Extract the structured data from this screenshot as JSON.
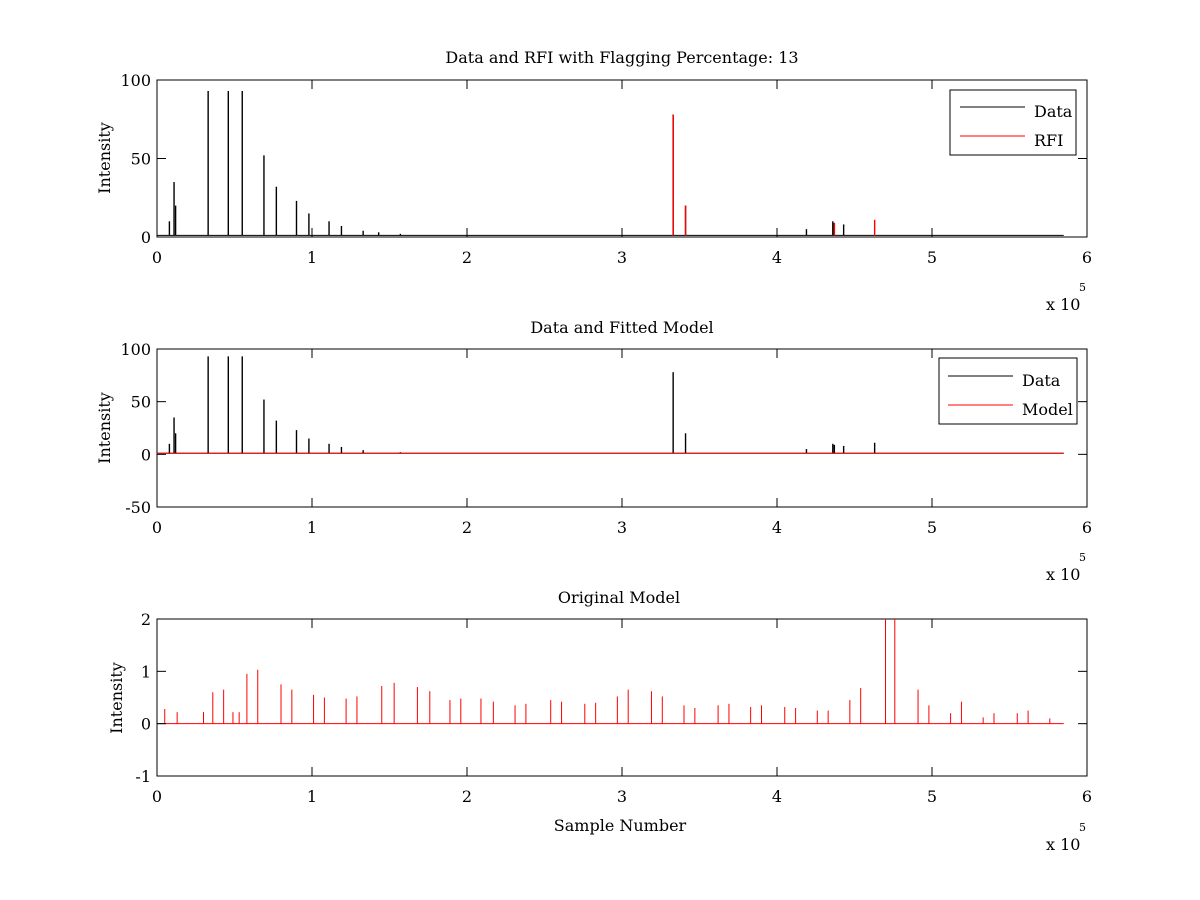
{
  "chart_data": [
    {
      "type": "line",
      "title": "Data and RFI with Flagging Percentage: 13",
      "xlabel": "",
      "ylabel": "Intensity",
      "xlim": [
        0,
        600000
      ],
      "ylim": [
        0,
        100
      ],
      "xticks": [
        0,
        1,
        2,
        3,
        4,
        5,
        6
      ],
      "yticks": [
        0,
        50,
        100
      ],
      "x_multiplier": {
        "base": "x 10",
        "exponent": "5"
      },
      "legend": {
        "position": "top-right",
        "entries": [
          "Data",
          "RFI"
        ]
      },
      "baseline": 1,
      "series": [
        {
          "name": "Data",
          "color": "#000000",
          "x": [
            8000,
            11000,
            12000,
            33000,
            46000,
            55000,
            69000,
            77000,
            90000,
            98000,
            111000,
            119000,
            133000,
            143000,
            157000,
            333000,
            341000,
            419000,
            436000,
            437000,
            443000
          ],
          "values": [
            10,
            35,
            20,
            93,
            93,
            93,
            52,
            32,
            23,
            15,
            10,
            7,
            4,
            3,
            2,
            78,
            20,
            5,
            10,
            9,
            8
          ]
        },
        {
          "name": "RFI",
          "color": "#ff0000",
          "x": [
            333000,
            341000,
            437000,
            463000
          ],
          "values": [
            78,
            20,
            9,
            11
          ]
        }
      ]
    },
    {
      "type": "line",
      "title": "Data and Fitted Model",
      "xlabel": "",
      "ylabel": "Intensity",
      "xlim": [
        0,
        600000
      ],
      "ylim": [
        -50,
        100
      ],
      "xticks": [
        0,
        1,
        2,
        3,
        4,
        5,
        6
      ],
      "yticks": [
        -50,
        0,
        50,
        100
      ],
      "x_multiplier": {
        "base": "x 10",
        "exponent": "5"
      },
      "legend": {
        "position": "top-right",
        "entries": [
          "Data",
          "Model"
        ]
      },
      "baseline": 1,
      "series": [
        {
          "name": "Data",
          "color": "#000000",
          "x": [
            8000,
            11000,
            12000,
            33000,
            46000,
            55000,
            69000,
            77000,
            90000,
            98000,
            111000,
            119000,
            133000,
            157000,
            333000,
            341000,
            419000,
            436000,
            437000,
            443000,
            463000
          ],
          "values": [
            10,
            35,
            20,
            93,
            93,
            93,
            52,
            32,
            23,
            15,
            10,
            7,
            4,
            2,
            78,
            20,
            5,
            10,
            9,
            8,
            11
          ]
        },
        {
          "name": "Model",
          "color": "#ff0000",
          "x": [
            0,
            585000
          ],
          "values": [
            1,
            1
          ]
        }
      ]
    },
    {
      "type": "line",
      "title": "Original Model",
      "xlabel": "Sample Number",
      "ylabel": "Intensity",
      "xlim": [
        0,
        600000
      ],
      "ylim": [
        -1,
        2
      ],
      "xticks": [
        0,
        1,
        2,
        3,
        4,
        5,
        6
      ],
      "yticks": [
        -1,
        0,
        1,
        2
      ],
      "x_multiplier": {
        "base": "x 10",
        "exponent": "5"
      },
      "baseline": 0,
      "series": [
        {
          "name": "Model",
          "color": "#ff0000",
          "x": [
            5000,
            13000,
            30000,
            36000,
            43000,
            49000,
            53000,
            58000,
            65000,
            80000,
            87000,
            101000,
            108000,
            122000,
            129000,
            145000,
            153000,
            168000,
            176000,
            189000,
            196000,
            209000,
            217000,
            231000,
            238000,
            254000,
            261000,
            276000,
            283000,
            297000,
            304000,
            319000,
            326000,
            340000,
            347000,
            362000,
            369000,
            383000,
            390000,
            405000,
            412000,
            426000,
            433000,
            447000,
            454000,
            470000,
            476000,
            491000,
            498000,
            512000,
            519000,
            533000,
            540000,
            555000,
            562000,
            576000
          ],
          "values": [
            0.28,
            0.22,
            0.22,
            0.6,
            0.65,
            0.22,
            0.22,
            0.95,
            1.03,
            0.75,
            0.65,
            0.55,
            0.5,
            0.48,
            0.52,
            0.72,
            0.78,
            0.7,
            0.62,
            0.45,
            0.48,
            0.48,
            0.42,
            0.35,
            0.38,
            0.45,
            0.42,
            0.38,
            0.4,
            0.52,
            0.65,
            0.62,
            0.52,
            0.35,
            0.3,
            0.35,
            0.38,
            0.32,
            0.35,
            0.32,
            0.3,
            0.25,
            0.25,
            0.45,
            0.68,
            2.0,
            2.0,
            0.65,
            0.35,
            0.2,
            0.42,
            0.12,
            0.2,
            0.2,
            0.25,
            0.1
          ]
        }
      ]
    }
  ]
}
